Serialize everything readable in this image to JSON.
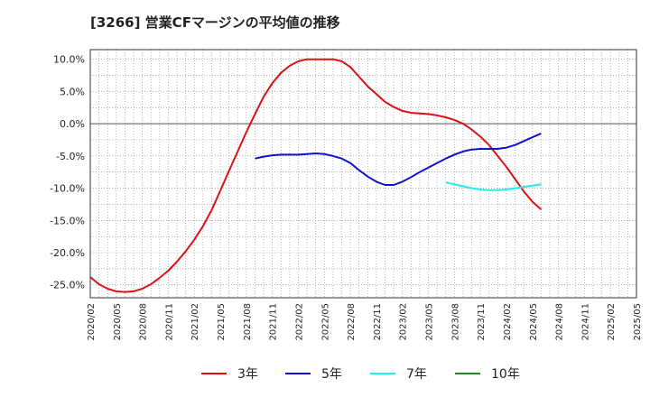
{
  "chart_data": {
    "type": "line",
    "title": "[3266]  営業CFマージンの平均値の推移",
    "x_ticks": [
      "2020/02",
      "2020/05",
      "2020/08",
      "2020/11",
      "2021/02",
      "2021/05",
      "2021/08",
      "2021/11",
      "2022/02",
      "2022/05",
      "2022/08",
      "2022/11",
      "2023/02",
      "2023/05",
      "2023/08",
      "2023/11",
      "2024/02",
      "2024/05",
      "2024/08",
      "2024/11",
      "2025/02",
      "2025/05"
    ],
    "y_ticks": [
      "10.0%",
      "5.0%",
      "0.0%",
      "-5.0%",
      "-10.0%",
      "-15.0%",
      "-20.0%",
      "-25.0%"
    ],
    "y_tick_values": [
      10,
      5,
      0,
      -5,
      -10,
      -15,
      -20,
      -25
    ],
    "ylim": [
      -27,
      11.5
    ],
    "grid": true,
    "legend_position": "bottom",
    "series": [
      {
        "name": "3年",
        "color": "#dd1111",
        "points": [
          [
            "2020/02",
            -23.8
          ],
          [
            "2020/03",
            -24.9
          ],
          [
            "2020/04",
            -25.6
          ],
          [
            "2020/05",
            -26.0
          ],
          [
            "2020/06",
            -26.1
          ],
          [
            "2020/07",
            -26.0
          ],
          [
            "2020/08",
            -25.6
          ],
          [
            "2020/09",
            -24.9
          ],
          [
            "2020/10",
            -23.9
          ],
          [
            "2020/11",
            -22.8
          ],
          [
            "2020/12",
            -21.4
          ],
          [
            "2021/01",
            -19.8
          ],
          [
            "2021/02",
            -18.0
          ],
          [
            "2021/03",
            -15.9
          ],
          [
            "2021/04",
            -13.4
          ],
          [
            "2021/05",
            -10.4
          ],
          [
            "2021/06",
            -7.3
          ],
          [
            "2021/07",
            -4.3
          ],
          [
            "2021/08",
            -1.3
          ],
          [
            "2021/09",
            1.5
          ],
          [
            "2021/10",
            4.2
          ],
          [
            "2021/11",
            6.3
          ],
          [
            "2021/12",
            7.9
          ],
          [
            "2022/01",
            9.0
          ],
          [
            "2022/02",
            9.7
          ],
          [
            "2022/03",
            10.0
          ],
          [
            "2022/04",
            10.0
          ],
          [
            "2022/05",
            10.0
          ],
          [
            "2022/06",
            10.0
          ],
          [
            "2022/07",
            9.7
          ],
          [
            "2022/08",
            8.8
          ],
          [
            "2022/09",
            7.3
          ],
          [
            "2022/10",
            5.8
          ],
          [
            "2022/11",
            4.6
          ],
          [
            "2022/12",
            3.4
          ],
          [
            "2023/01",
            2.6
          ],
          [
            "2023/02",
            2.0
          ],
          [
            "2023/03",
            1.7
          ],
          [
            "2023/04",
            1.6
          ],
          [
            "2023/05",
            1.5
          ],
          [
            "2023/06",
            1.3
          ],
          [
            "2023/07",
            1.0
          ],
          [
            "2023/08",
            0.6
          ],
          [
            "2023/09",
            0.0
          ],
          [
            "2023/10",
            -0.9
          ],
          [
            "2023/11",
            -2.0
          ],
          [
            "2023/12",
            -3.3
          ],
          [
            "2024/01",
            -5.0
          ],
          [
            "2024/02",
            -6.7
          ],
          [
            "2024/03",
            -8.6
          ],
          [
            "2024/04",
            -10.5
          ],
          [
            "2024/05",
            -12.1
          ],
          [
            "2024/06",
            -13.3
          ]
        ]
      },
      {
        "name": "5年",
        "color": "#1111cc",
        "points": [
          [
            "2021/09",
            -5.4
          ],
          [
            "2021/10",
            -5.1
          ],
          [
            "2021/11",
            -4.9
          ],
          [
            "2021/12",
            -4.8
          ],
          [
            "2022/01",
            -4.8
          ],
          [
            "2022/02",
            -4.8
          ],
          [
            "2022/03",
            -4.7
          ],
          [
            "2022/04",
            -4.6
          ],
          [
            "2022/05",
            -4.7
          ],
          [
            "2022/06",
            -5.0
          ],
          [
            "2022/07",
            -5.4
          ],
          [
            "2022/08",
            -6.1
          ],
          [
            "2022/09",
            -7.2
          ],
          [
            "2022/10",
            -8.2
          ],
          [
            "2022/11",
            -9.0
          ],
          [
            "2022/12",
            -9.5
          ],
          [
            "2023/01",
            -9.5
          ],
          [
            "2023/02",
            -9.0
          ],
          [
            "2023/03",
            -8.3
          ],
          [
            "2023/04",
            -7.5
          ],
          [
            "2023/05",
            -6.8
          ],
          [
            "2023/06",
            -6.1
          ],
          [
            "2023/07",
            -5.4
          ],
          [
            "2023/08",
            -4.8
          ],
          [
            "2023/09",
            -4.3
          ],
          [
            "2023/10",
            -4.0
          ],
          [
            "2023/11",
            -3.9
          ],
          [
            "2023/12",
            -3.9
          ],
          [
            "2024/01",
            -3.9
          ],
          [
            "2024/02",
            -3.7
          ],
          [
            "2024/03",
            -3.3
          ],
          [
            "2024/04",
            -2.7
          ],
          [
            "2024/05",
            -2.1
          ],
          [
            "2024/06",
            -1.5
          ]
        ]
      },
      {
        "name": "7年",
        "color": "#22eeee",
        "points": [
          [
            "2023/07",
            -9.1
          ],
          [
            "2023/08",
            -9.4
          ],
          [
            "2023/09",
            -9.7
          ],
          [
            "2023/10",
            -10.0
          ],
          [
            "2023/11",
            -10.2
          ],
          [
            "2023/12",
            -10.3
          ],
          [
            "2024/01",
            -10.3
          ],
          [
            "2024/02",
            -10.2
          ],
          [
            "2024/03",
            -10.0
          ],
          [
            "2024/04",
            -9.8
          ],
          [
            "2024/05",
            -9.6
          ],
          [
            "2024/06",
            -9.4
          ]
        ]
      },
      {
        "name": "10年",
        "color": "#228822",
        "points": []
      }
    ]
  }
}
